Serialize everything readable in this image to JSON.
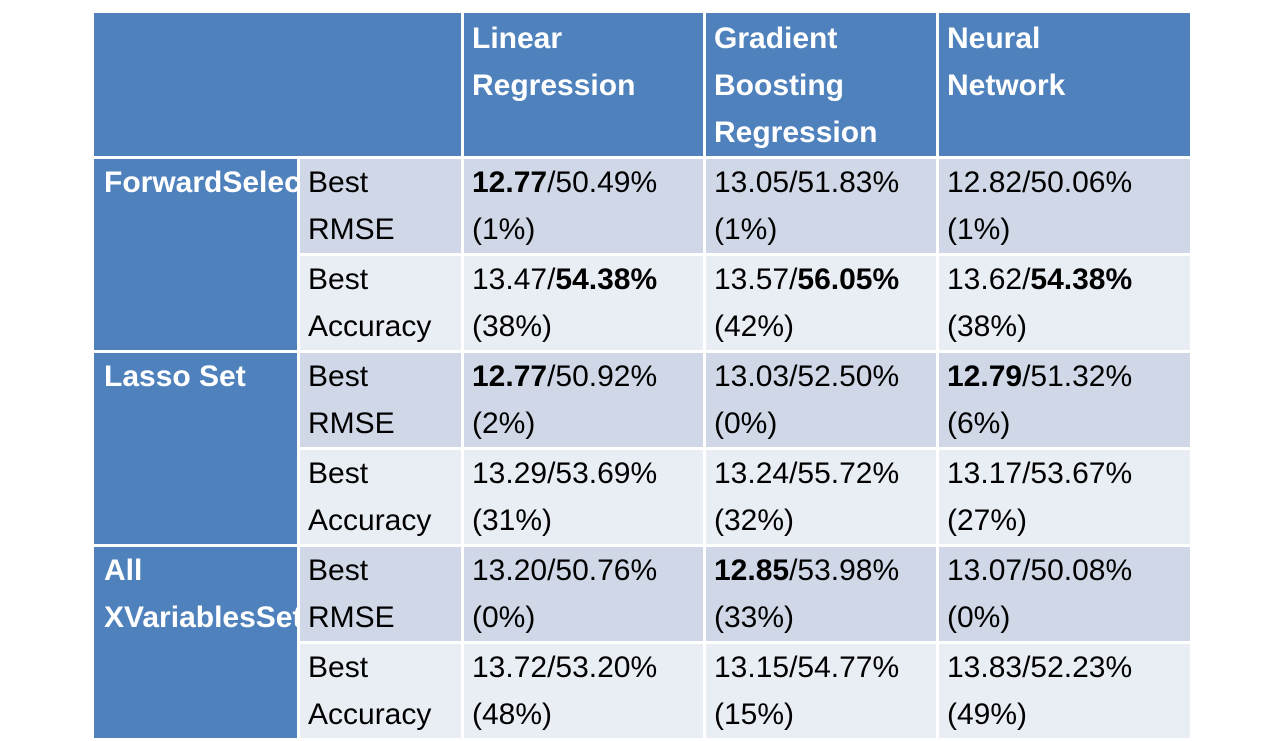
{
  "table": {
    "columns": [
      {
        "lines": [
          "",
          ""
        ]
      },
      {
        "lines": [
          "Linear",
          "Regression"
        ]
      },
      {
        "lines": [
          "Gradient",
          "Boosting",
          "Regression"
        ]
      },
      {
        "lines": [
          "Neural",
          "Network"
        ]
      }
    ],
    "groups": [
      {
        "lines": [
          "Forward",
          "Selection",
          "Set"
        ],
        "rows": [
          {
            "metric": [
              "Best",
              "RMSE"
            ],
            "cells": [
              {
                "rmse": "12.77",
                "sep": "/",
                "acc": "50.49%",
                "pct": "(1%)",
                "bold": "rmse"
              },
              {
                "rmse": "13.05",
                "sep": "/",
                "acc": "51.83%",
                "pct": "(1%)",
                "bold": ""
              },
              {
                "rmse": "12.82",
                "sep": "/",
                "acc": "50.06%",
                "pct": "(1%)",
                "bold": ""
              }
            ]
          },
          {
            "metric": [
              "Best",
              "Accuracy"
            ],
            "cells": [
              {
                "rmse": "13.47",
                "sep": "/",
                "acc": "54.38%",
                "pct": "(38%)",
                "bold": "acc"
              },
              {
                "rmse": "13.57",
                "sep": "/",
                "acc": "56.05%",
                "pct": "(42%)",
                "bold": "acc"
              },
              {
                "rmse": "13.62",
                "sep": "/",
                "acc": "54.38%",
                "pct": "(38%)",
                "bold": "acc"
              }
            ]
          }
        ]
      },
      {
        "lines": [
          "Lasso Set"
        ],
        "rows": [
          {
            "metric": [
              "Best",
              "RMSE"
            ],
            "cells": [
              {
                "rmse": "12.77",
                "sep": "/",
                "acc": "50.92%",
                "pct": "(2%)",
                "bold": "rmse"
              },
              {
                "rmse": "13.03",
                "sep": "/",
                "acc": "52.50%",
                "pct": "(0%)",
                "bold": ""
              },
              {
                "rmse": "12.79",
                "sep": "/",
                "acc": "51.32%",
                "pct": "(6%)",
                "bold": "rmse"
              }
            ]
          },
          {
            "metric": [
              "Best",
              "Accuracy"
            ],
            "cells": [
              {
                "rmse": "13.29",
                "sep": "/",
                "acc": "53.69%",
                "pct": "(31%)",
                "bold": ""
              },
              {
                "rmse": "13.24",
                "sep": "/",
                "acc": "55.72%",
                "pct": "(32%)",
                "bold": ""
              },
              {
                "rmse": "13.17",
                "sep": "/",
                "acc": "53.67%",
                "pct": "(27%)",
                "bold": ""
              }
            ]
          }
        ]
      },
      {
        "lines": [
          "All X",
          "Variables",
          "Set"
        ],
        "rows": [
          {
            "metric": [
              "Best",
              "RMSE"
            ],
            "cells": [
              {
                "rmse": "13.20",
                "sep": "/",
                "acc": "50.76%",
                "pct": "(0%)",
                "bold": ""
              },
              {
                "rmse": "12.85",
                "sep": "/",
                "acc": "53.98%",
                "pct": "(33%)",
                "bold": "rmse"
              },
              {
                "rmse": "13.07",
                "sep": "/",
                "acc": "50.08%",
                "pct": "(0%)",
                "bold": ""
              }
            ]
          },
          {
            "metric": [
              "Best",
              "Accuracy"
            ],
            "cells": [
              {
                "rmse": "13.72",
                "sep": "/",
                "acc": "53.20%",
                "pct": "(48%)",
                "bold": ""
              },
              {
                "rmse": "13.15",
                "sep": "/",
                "acc": "54.77%",
                "pct": "(15%)",
                "bold": ""
              },
              {
                "rmse": "13.83",
                "sep": "/",
                "acc": "52.23%",
                "pct": "(49%)",
                "bold": ""
              }
            ]
          }
        ]
      }
    ]
  },
  "colors": {
    "header": "#4f81bd",
    "row_dark": "#d0d8e8",
    "row_light": "#e9edf4",
    "header_text": "#ffffff"
  }
}
